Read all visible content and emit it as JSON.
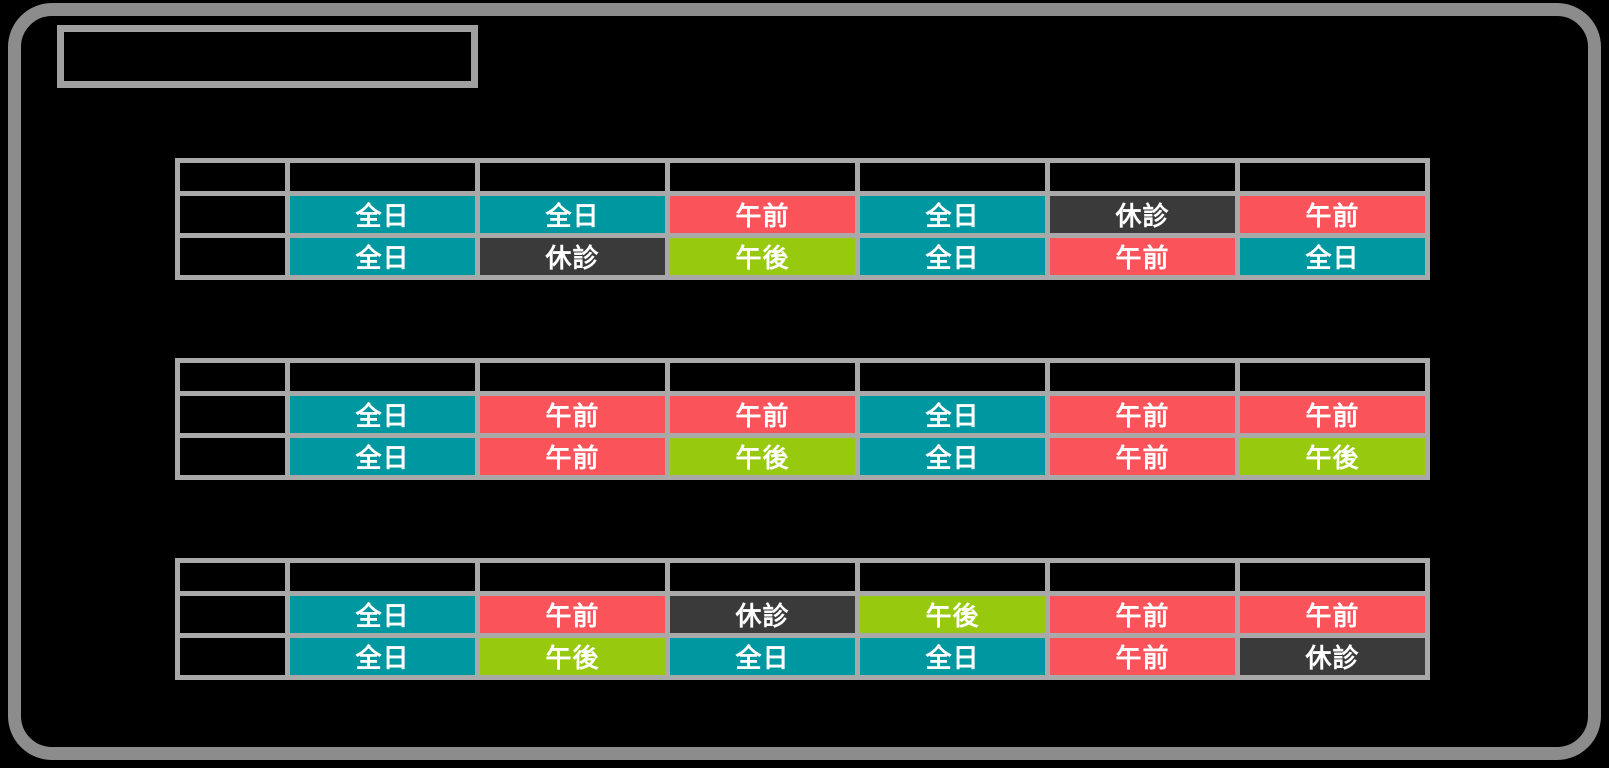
{
  "title": {
    "text": ""
  },
  "colors": {
    "background": "#000000",
    "frame": "#8c8c8c",
    "title_border": "#a0a0a0",
    "table_border": "#a9a9a9",
    "header_bg": "#000000",
    "cell_text": "#ffffff"
  },
  "statuses": {
    "all_day": {
      "label": "全日",
      "color": "#0098a0"
    },
    "morning": {
      "label": "午前",
      "color": "#fa535a"
    },
    "afternoon": {
      "label": "午後",
      "color": "#97c90f"
    },
    "closed": {
      "label": "休診",
      "color": "#3a3a3a"
    }
  },
  "tables": [
    {
      "headers": [
        "",
        "",
        "",
        "",
        "",
        ""
      ],
      "rows": [
        {
          "label": "",
          "cells": [
            "all_day",
            "all_day",
            "morning",
            "all_day",
            "closed",
            "morning"
          ]
        },
        {
          "label": "",
          "cells": [
            "all_day",
            "closed",
            "afternoon",
            "all_day",
            "morning",
            "all_day"
          ]
        }
      ]
    },
    {
      "headers": [
        "",
        "",
        "",
        "",
        "",
        ""
      ],
      "rows": [
        {
          "label": "",
          "cells": [
            "all_day",
            "morning",
            "morning",
            "all_day",
            "morning",
            "morning"
          ]
        },
        {
          "label": "",
          "cells": [
            "all_day",
            "morning",
            "afternoon",
            "all_day",
            "morning",
            "afternoon"
          ]
        }
      ]
    },
    {
      "headers": [
        "",
        "",
        "",
        "",
        "",
        ""
      ],
      "rows": [
        {
          "label": "",
          "cells": [
            "all_day",
            "morning",
            "closed",
            "afternoon",
            "morning",
            "morning"
          ]
        },
        {
          "label": "",
          "cells": [
            "all_day",
            "afternoon",
            "all_day",
            "all_day",
            "morning",
            "closed"
          ]
        }
      ]
    }
  ]
}
